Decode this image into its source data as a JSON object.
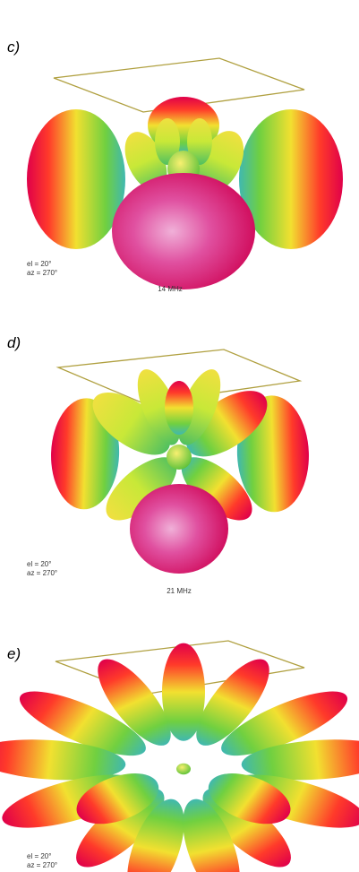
{
  "panels": [
    {
      "label": "c)",
      "elevation": "el = 20°",
      "azimuth": "az = 270°",
      "frequency": "14 MHz"
    },
    {
      "label": "d)",
      "elevation": "el = 20°",
      "azimuth": "az = 270°",
      "frequency": "21 MHz"
    },
    {
      "label": "e)",
      "elevation": "el = 20°",
      "azimuth": "az = 270°"
    }
  ]
}
